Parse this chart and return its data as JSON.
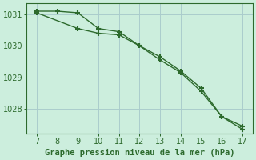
{
  "line1_x": [
    7,
    8,
    9,
    10,
    11,
    12,
    13,
    14,
    15,
    16,
    17
  ],
  "line1_y": [
    1031.1,
    1031.1,
    1031.05,
    1030.55,
    1030.45,
    1030.0,
    1029.65,
    1029.2,
    1028.65,
    1027.75,
    1027.45
  ],
  "line2_x": [
    7,
    9,
    10,
    11,
    12,
    13,
    14,
    15,
    16,
    17
  ],
  "line2_y": [
    1031.05,
    1030.55,
    1030.4,
    1030.35,
    1030.0,
    1029.55,
    1029.15,
    1028.55,
    1027.75,
    1027.35
  ],
  "line_color": "#2d6a2d",
  "bg_color": "#cceedd",
  "grid_color": "#aacccc",
  "xlabel": "Graphe pression niveau de la mer (hPa)",
  "xlim": [
    6.5,
    17.5
  ],
  "ylim": [
    1027.2,
    1031.35
  ],
  "yticks": [
    1028,
    1029,
    1030,
    1031
  ],
  "xticks": [
    7,
    8,
    9,
    10,
    11,
    12,
    13,
    14,
    15,
    16,
    17
  ],
  "xlabel_fontsize": 7.5,
  "tick_fontsize": 7,
  "marker": "+",
  "marker_size": 5,
  "marker_lw": 1.5
}
